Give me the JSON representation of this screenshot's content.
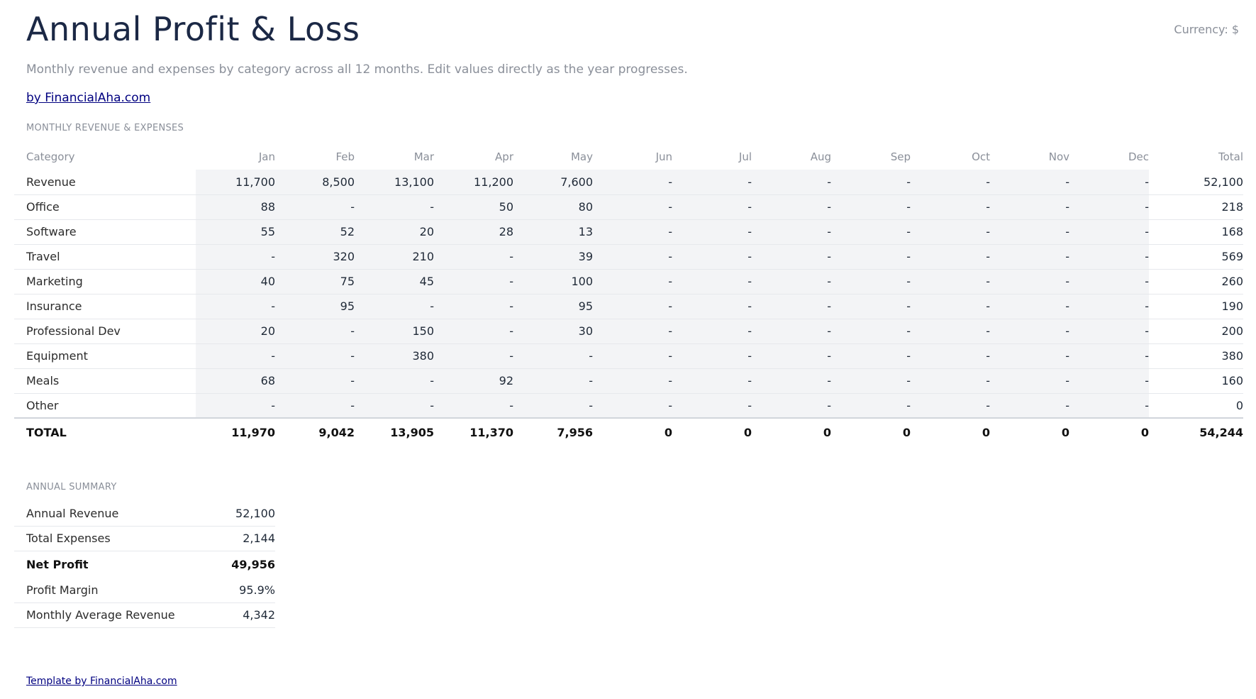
{
  "header": {
    "title": "Annual Profit & Loss",
    "currency": "Currency: $",
    "subtitle": "Monthly revenue and expenses by category across all 12 months. Edit values directly as the year progresses.",
    "byline": "by FinancialAha.com"
  },
  "pl_table": {
    "section_label": "MONTHLY REVENUE & EXPENSES",
    "columns": [
      "Category",
      "Jan",
      "Feb",
      "Mar",
      "Apr",
      "May",
      "Jun",
      "Jul",
      "Aug",
      "Sep",
      "Oct",
      "Nov",
      "Dec",
      "Total"
    ],
    "rows": [
      {
        "category": "Revenue",
        "values": [
          "11,700",
          "8,500",
          "13,100",
          "11,200",
          "7,600",
          "-",
          "-",
          "-",
          "-",
          "-",
          "-",
          "-"
        ],
        "total": "52,100"
      },
      {
        "category": "Office",
        "values": [
          "88",
          "-",
          "-",
          "50",
          "80",
          "-",
          "-",
          "-",
          "-",
          "-",
          "-",
          "-"
        ],
        "total": "218"
      },
      {
        "category": "Software",
        "values": [
          "55",
          "52",
          "20",
          "28",
          "13",
          "-",
          "-",
          "-",
          "-",
          "-",
          "-",
          "-"
        ],
        "total": "168"
      },
      {
        "category": "Travel",
        "values": [
          "-",
          "320",
          "210",
          "-",
          "39",
          "-",
          "-",
          "-",
          "-",
          "-",
          "-",
          "-"
        ],
        "total": "569"
      },
      {
        "category": "Marketing",
        "values": [
          "40",
          "75",
          "45",
          "-",
          "100",
          "-",
          "-",
          "-",
          "-",
          "-",
          "-",
          "-"
        ],
        "total": "260"
      },
      {
        "category": "Insurance",
        "values": [
          "-",
          "95",
          "-",
          "-",
          "95",
          "-",
          "-",
          "-",
          "-",
          "-",
          "-",
          "-"
        ],
        "total": "190"
      },
      {
        "category": "Professional Dev",
        "values": [
          "20",
          "-",
          "150",
          "-",
          "30",
          "-",
          "-",
          "-",
          "-",
          "-",
          "-",
          "-"
        ],
        "total": "200"
      },
      {
        "category": "Equipment",
        "values": [
          "-",
          "-",
          "380",
          "-",
          "-",
          "-",
          "-",
          "-",
          "-",
          "-",
          "-",
          "-"
        ],
        "total": "380"
      },
      {
        "category": "Meals",
        "values": [
          "68",
          "-",
          "-",
          "92",
          "-",
          "-",
          "-",
          "-",
          "-",
          "-",
          "-",
          "-"
        ],
        "total": "160"
      },
      {
        "category": "Other",
        "values": [
          "-",
          "-",
          "-",
          "-",
          "-",
          "-",
          "-",
          "-",
          "-",
          "-",
          "-",
          "-"
        ],
        "total": "0"
      }
    ],
    "total_row": {
      "label": "TOTAL",
      "values": [
        "11,970",
        "9,042",
        "13,905",
        "11,370",
        "7,956",
        "0",
        "0",
        "0",
        "0",
        "0",
        "0",
        "0"
      ],
      "total": "54,244"
    }
  },
  "summary": {
    "section_label": "ANNUAL SUMMARY",
    "annual_revenue": {
      "label": "Annual Revenue",
      "value": "52,100"
    },
    "total_expenses": {
      "label": "Total Expenses",
      "value": "2,144"
    },
    "net_profit": {
      "label": "Net Profit",
      "value": "49,956"
    },
    "profit_margin": {
      "label": "Profit Margin",
      "value": "95.9%"
    },
    "monthly_avg_revenue": {
      "label": "Monthly Average Revenue",
      "value": "4,342"
    }
  },
  "footer": {
    "link": "Template by FinancialAha.com"
  }
}
